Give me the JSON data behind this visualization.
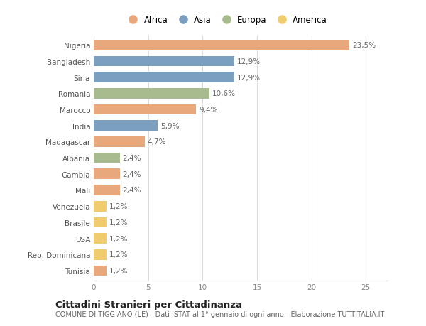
{
  "categories": [
    "Nigeria",
    "Bangladesh",
    "Siria",
    "Romania",
    "Marocco",
    "India",
    "Madagascar",
    "Albania",
    "Gambia",
    "Mali",
    "Venezuela",
    "Brasile",
    "USA",
    "Rep. Dominicana",
    "Tunisia"
  ],
  "values": [
    23.5,
    12.9,
    12.9,
    10.6,
    9.4,
    5.9,
    4.7,
    2.4,
    2.4,
    2.4,
    1.2,
    1.2,
    1.2,
    1.2,
    1.2
  ],
  "labels": [
    "23,5%",
    "12,9%",
    "12,9%",
    "10,6%",
    "9,4%",
    "5,9%",
    "4,7%",
    "2,4%",
    "2,4%",
    "2,4%",
    "1,2%",
    "1,2%",
    "1,2%",
    "1,2%",
    "1,2%"
  ],
  "continents": [
    "Africa",
    "Asia",
    "Asia",
    "Europa",
    "Africa",
    "Asia",
    "Africa",
    "Europa",
    "Africa",
    "Africa",
    "America",
    "America",
    "America",
    "America",
    "Africa"
  ],
  "colors": {
    "Africa": "#E8A87C",
    "Asia": "#7B9FBF",
    "Europa": "#A8BB8E",
    "America": "#F0CC6E"
  },
  "legend_order": [
    "Africa",
    "Asia",
    "Europa",
    "America"
  ],
  "title": "Cittadini Stranieri per Cittadinanza",
  "subtitle": "COMUNE DI TIGGIANO (LE) - Dati ISTAT al 1° gennaio di ogni anno - Elaborazione TUTTITALIA.IT",
  "xlim": [
    0,
    27
  ],
  "xticks": [
    0,
    5,
    10,
    15,
    20,
    25
  ],
  "bg_color": "#ffffff",
  "grid_color": "#dddddd",
  "bar_height": 0.65,
  "label_fontsize": 7.5,
  "tick_fontsize": 7.5,
  "title_fontsize": 9.5,
  "subtitle_fontsize": 7.0,
  "legend_fontsize": 8.5
}
